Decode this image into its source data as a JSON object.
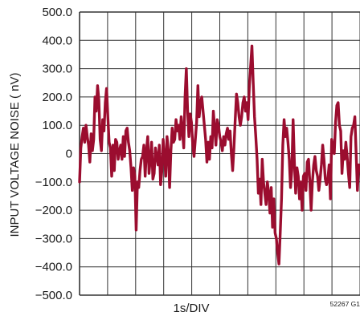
{
  "chart_data": {
    "type": "line",
    "title": "",
    "xlabel": "1s/DIV",
    "ylabel": "INPUT VOLTAGE NOISE ( nV)",
    "figure_tag": "52267 G1",
    "ylim": [
      -500,
      500
    ],
    "yticks": [
      "500.0",
      "400.0",
      "300.0",
      "200.0",
      "100.0",
      "0",
      "−100.0",
      "−200.0",
      "−300.0",
      "−400.0",
      "−500.0"
    ],
    "x_divisions": 10,
    "xlim": [
      0,
      10
    ],
    "grid": true,
    "line_color": "#9b0d2f",
    "series": [
      {
        "values": [
          -100,
          20,
          60,
          90,
          40,
          100,
          60,
          30,
          -30,
          70,
          10,
          50,
          200,
          150,
          240,
          190,
          50,
          10,
          120,
          80,
          180,
          230,
          130,
          40,
          20,
          -80,
          30,
          -60,
          50,
          40,
          -20,
          10,
          30,
          -20,
          60,
          -10,
          80,
          90,
          40,
          10,
          -50,
          -130,
          -50,
          -80,
          -270,
          -100,
          -120,
          -60,
          -20,
          -10,
          30,
          -80,
          10,
          60,
          -70,
          -20,
          40,
          -90,
          -70,
          20,
          -10,
          -40,
          30,
          -110,
          -60,
          50,
          -10,
          -80,
          60,
          10,
          -120,
          10,
          90,
          40,
          50,
          120,
          80,
          100,
          50,
          130,
          80,
          20,
          200,
          300,
          150,
          60,
          140,
          110,
          30,
          -10,
          50,
          110,
          240,
          130,
          180,
          200,
          150,
          100,
          50,
          -30,
          40,
          -20,
          60,
          20,
          150,
          90,
          30,
          120,
          100,
          60,
          40,
          10,
          60,
          30,
          70,
          90,
          50,
          80,
          0,
          -60,
          20,
          120,
          210,
          180,
          130,
          100,
          130,
          180,
          200,
          150,
          180,
          120,
          240,
          310,
          380,
          250,
          130,
          60,
          -20,
          -140,
          -90,
          -180,
          -20,
          -100,
          -140,
          -180,
          -100,
          -140,
          -210,
          -120,
          -260,
          -160,
          -280,
          -300,
          -350,
          -390,
          -280,
          -160,
          30,
          120,
          60,
          90,
          40,
          -20,
          -120,
          -60,
          120,
          -30,
          -140,
          -50,
          -80,
          -160,
          -100,
          -200,
          -80,
          -70,
          -130,
          -30,
          -20,
          -100,
          -200,
          -100,
          -40,
          -10,
          -60,
          -80,
          -130,
          -90,
          -40,
          30,
          -20,
          -90,
          -110,
          -90,
          -40,
          -160,
          50,
          20,
          0,
          110,
          170,
          180,
          100,
          80,
          -70,
          10,
          -20,
          40,
          -10,
          -70,
          -120,
          60,
          90,
          100,
          130,
          0,
          -130,
          -40,
          -60
        ]
      }
    ]
  }
}
